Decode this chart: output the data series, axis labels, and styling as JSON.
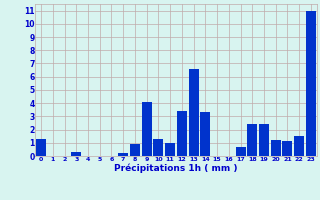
{
  "hours": [
    0,
    1,
    2,
    3,
    4,
    5,
    6,
    7,
    8,
    9,
    10,
    11,
    12,
    13,
    14,
    15,
    16,
    17,
    18,
    19,
    20,
    21,
    22,
    23
  ],
  "values": [
    1.3,
    0,
    0,
    0.3,
    0,
    0,
    0,
    0.2,
    0.9,
    4.1,
    1.3,
    1.0,
    3.4,
    6.6,
    3.3,
    0,
    0,
    0.7,
    2.4,
    2.4,
    1.2,
    1.1,
    1.5,
    11.0
  ],
  "bar_color": "#0033cc",
  "bg_color": "#d8f4f0",
  "grid_color": "#c0aaaa",
  "xlabel": "Précipitations 1h ( mm )",
  "xlabel_color": "#0000cc",
  "tick_color": "#0000cc",
  "ylim": [
    0,
    11.5
  ],
  "yticks": [
    0,
    1,
    2,
    3,
    4,
    5,
    6,
    7,
    8,
    9,
    10,
    11
  ],
  "bar_width": 0.85
}
